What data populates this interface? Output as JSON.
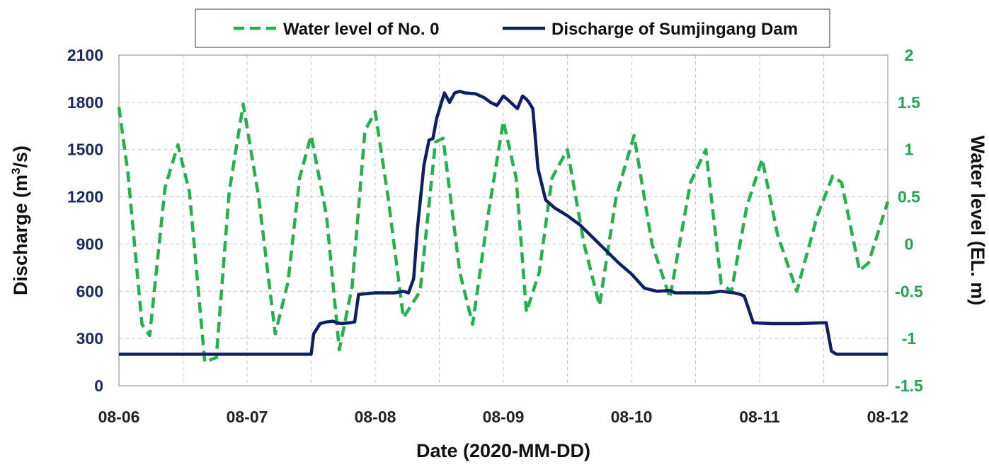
{
  "chart_data": {
    "type": "line",
    "xlabel": "Date (2020-MM-DD)",
    "ylabel_left": "Discharge (m³/s)",
    "ylabel_left_parts": [
      "Discharge (m",
      "3",
      "/s)"
    ],
    "ylabel_right": "Water level (EL. m)",
    "x_range": [
      0,
      6
    ],
    "x_ticks": [
      "08-06",
      "08-07",
      "08-08",
      "08-09",
      "08-10",
      "08-11",
      "08-12"
    ],
    "ylim_left": [
      0,
      2100
    ],
    "yticks_left": [
      "0",
      "300",
      "600",
      "900",
      "1200",
      "1500",
      "1800",
      "2100"
    ],
    "ylim_right": [
      -1.5,
      2
    ],
    "yticks_right": [
      "-1.5",
      "-1",
      "-0.5",
      "0",
      "0.5",
      "1",
      "1.5",
      "2"
    ],
    "grid": true,
    "legend_position": "top-center",
    "series": [
      {
        "name": "Water level of No. 0",
        "axis": "right",
        "color": "#22b14c",
        "style": "dashed",
        "x": [
          0.0,
          0.07,
          0.18,
          0.24,
          0.36,
          0.46,
          0.55,
          0.67,
          0.76,
          0.86,
          0.97,
          1.09,
          1.22,
          1.32,
          1.41,
          1.5,
          1.62,
          1.72,
          1.82,
          1.92,
          2.0,
          2.1,
          2.22,
          2.35,
          2.47,
          2.53,
          2.66,
          2.76,
          2.88,
          3.0,
          3.1,
          3.18,
          3.28,
          3.38,
          3.5,
          3.63,
          3.75,
          3.88,
          4.02,
          4.16,
          4.3,
          4.46,
          4.58,
          4.7,
          4.78,
          4.9,
          5.02,
          5.14,
          5.29,
          5.45,
          5.57,
          5.64,
          5.78,
          5.85,
          6.0
        ],
        "values": [
          1.45,
          0.75,
          -0.85,
          -0.97,
          0.6,
          1.05,
          0.55,
          -1.25,
          -1.2,
          0.55,
          1.48,
          0.5,
          -0.95,
          -0.4,
          0.7,
          1.15,
          0.3,
          -1.12,
          -0.45,
          1.2,
          1.4,
          0.5,
          -0.78,
          -0.5,
          1.08,
          1.12,
          -0.3,
          -0.85,
          0.3,
          1.3,
          0.7,
          -0.72,
          -0.3,
          0.7,
          1.0,
          0.0,
          -0.65,
          0.5,
          1.15,
          0.0,
          -0.57,
          0.65,
          1.0,
          -0.42,
          -0.5,
          0.4,
          0.9,
          0.1,
          -0.5,
          0.3,
          0.72,
          0.65,
          -0.28,
          -0.2,
          0.45
        ]
      },
      {
        "name": "Discharge of Sumjingang Dam",
        "axis": "left",
        "color": "#0f1f66",
        "style": "solid",
        "x": [
          0.0,
          1.5,
          1.52,
          1.57,
          1.62,
          1.67,
          1.7,
          1.74,
          1.8,
          1.84,
          1.87,
          2.0,
          2.15,
          2.22,
          2.26,
          2.3,
          2.33,
          2.38,
          2.42,
          2.45,
          2.48,
          2.51,
          2.54,
          2.58,
          2.62,
          2.66,
          2.7,
          2.78,
          2.85,
          2.9,
          2.95,
          3.0,
          3.03,
          3.07,
          3.11,
          3.15,
          3.18,
          3.2,
          3.23,
          3.27,
          3.3,
          3.33,
          3.4,
          3.5,
          3.6,
          3.7,
          3.8,
          3.9,
          4.0,
          4.1,
          4.2,
          4.3,
          4.34,
          4.36,
          4.4,
          4.6,
          4.7,
          4.8,
          4.85,
          4.88,
          4.95,
          5.1,
          5.3,
          5.5,
          5.52,
          5.56,
          5.6,
          6.0
        ],
        "values": [
          200,
          200,
          330,
          395,
          405,
          410,
          400,
          395,
          400,
          405,
          580,
          590,
          590,
          600,
          590,
          680,
          1000,
          1400,
          1560,
          1570,
          1700,
          1780,
          1860,
          1800,
          1860,
          1870,
          1860,
          1855,
          1830,
          1800,
          1780,
          1840,
          1820,
          1790,
          1760,
          1840,
          1820,
          1800,
          1760,
          1380,
          1280,
          1180,
          1130,
          1080,
          1020,
          940,
          860,
          780,
          710,
          620,
          600,
          605,
          590,
          590,
          590,
          590,
          600,
          590,
          580,
          570,
          400,
          395,
          395,
          400,
          400,
          220,
          200,
          200
        ]
      }
    ]
  }
}
